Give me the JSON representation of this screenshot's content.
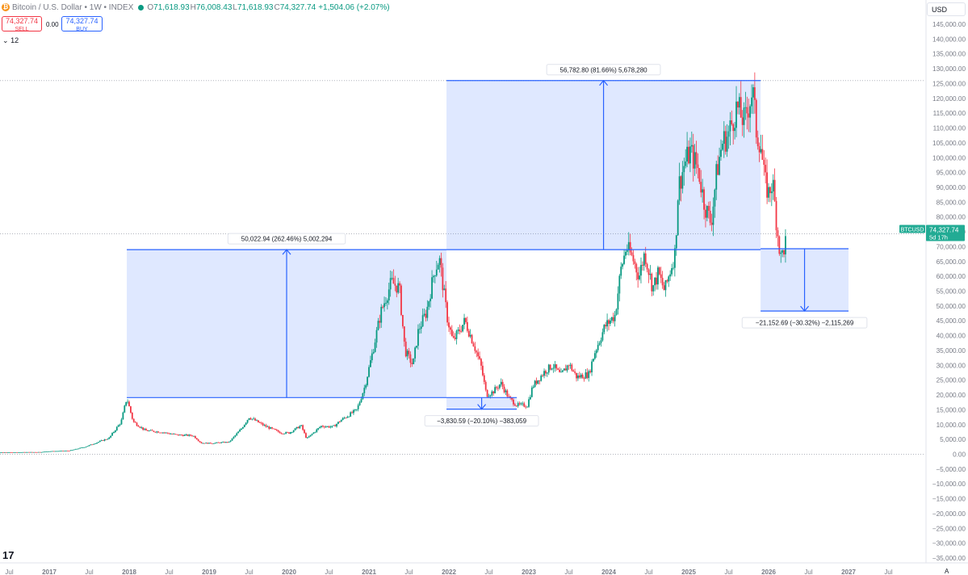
{
  "header": {
    "symbol": "Bitcoin / U.S. Dollar • 1W • INDEX",
    "coin_icon": "bitcoin-icon",
    "open_label": "O",
    "open": "71,618.93",
    "high_label": "H",
    "high": "76,008.43",
    "low_label": "L",
    "low": "71,618.93",
    "close_label": "C",
    "close": "74,327.74",
    "change": "+1,504.06 (+2.07%)"
  },
  "trade": {
    "sell_price": "74,327.74",
    "sell_label": "SELL",
    "spread": "0.00",
    "buy_price": "74,327.74",
    "buy_label": "BUY"
  },
  "interval_label": "12",
  "currency": "USD",
  "auto_label": "A",
  "logo": "tradingview-logo",
  "colors": {
    "up": "#089981",
    "down": "#f23645",
    "measure": "#2962ff",
    "measure_fill": "rgba(41,98,255,0.15)",
    "price_tag": "#22ab94"
  },
  "chart_data": {
    "type": "candlestick",
    "symbol_tag": "BTCUSD",
    "last_price": "74,327.74",
    "countdown": "5d 17h",
    "ylim": [
      -35000,
      150000
    ],
    "y_ticks": [
      "145,000.00",
      "140,000.00",
      "135,000.00",
      "130,000.00",
      "125,000.00",
      "120,000.00",
      "115,000.00",
      "110,000.00",
      "105,000.00",
      "100,000.00",
      "95,000.00",
      "90,000.00",
      "85,000.00",
      "80,000.00",
      "75,000.00",
      "70,000.00",
      "65,000.00",
      "60,000.00",
      "55,000.00",
      "50,000.00",
      "45,000.00",
      "40,000.00",
      "35,000.00",
      "30,000.00",
      "25,000.00",
      "20,000.00",
      "15,000.00",
      "10,000.00",
      "5,000.00",
      "0.00",
      "−5,000.00",
      "−10,000.00",
      "−15,000.00",
      "−20,000.00",
      "−25,000.00",
      "−30,000.00",
      "−35,000.00"
    ],
    "x_ticks": [
      {
        "label": "Jul",
        "t": 2016.5
      },
      {
        "label": "2017",
        "t": 2017.0
      },
      {
        "label": "Jul",
        "t": 2017.5
      },
      {
        "label": "2018",
        "t": 2018.0
      },
      {
        "label": "Jul",
        "t": 2018.5
      },
      {
        "label": "2019",
        "t": 2019.0
      },
      {
        "label": "Jul",
        "t": 2019.5
      },
      {
        "label": "2020",
        "t": 2020.0
      },
      {
        "label": "Jul",
        "t": 2020.5
      },
      {
        "label": "2021",
        "t": 2021.0
      },
      {
        "label": "Jul",
        "t": 2021.5
      },
      {
        "label": "2022",
        "t": 2022.0
      },
      {
        "label": "Jul",
        "t": 2022.5
      },
      {
        "label": "2023",
        "t": 2023.0
      },
      {
        "label": "Jul",
        "t": 2023.5
      },
      {
        "label": "2024",
        "t": 2024.0
      },
      {
        "label": "Jul",
        "t": 2024.5
      },
      {
        "label": "2025",
        "t": 2025.0
      },
      {
        "label": "Jul",
        "t": 2025.5
      },
      {
        "label": "2026",
        "t": 2026.0
      },
      {
        "label": "Jul",
        "t": 2026.5
      },
      {
        "label": "2027",
        "t": 2027.0
      },
      {
        "label": "Jul",
        "t": 2027.5
      }
    ],
    "price_path": [
      [
        2016.0,
        430
      ],
      [
        2016.5,
        650
      ],
      [
        2016.9,
        740
      ],
      [
        2017.0,
        1000
      ],
      [
        2017.25,
        1200
      ],
      [
        2017.45,
        2500
      ],
      [
        2017.6,
        4000
      ],
      [
        2017.75,
        5500
      ],
      [
        2017.9,
        11000
      ],
      [
        2017.97,
        19000
      ],
      [
        2018.05,
        11000
      ],
      [
        2018.2,
        8000
      ],
      [
        2018.4,
        7500
      ],
      [
        2018.6,
        6500
      ],
      [
        2018.8,
        6300
      ],
      [
        2018.9,
        3800
      ],
      [
        2019.0,
        3700
      ],
      [
        2019.25,
        4100
      ],
      [
        2019.4,
        8500
      ],
      [
        2019.5,
        12500
      ],
      [
        2019.7,
        9500
      ],
      [
        2019.9,
        7200
      ],
      [
        2020.0,
        7200
      ],
      [
        2020.15,
        9700
      ],
      [
        2020.22,
        5200
      ],
      [
        2020.4,
        9500
      ],
      [
        2020.55,
        9200
      ],
      [
        2020.65,
        11500
      ],
      [
        2020.85,
        15000
      ],
      [
        2020.95,
        23000
      ],
      [
        2021.05,
        35000
      ],
      [
        2021.15,
        48000
      ],
      [
        2021.28,
        58000
      ],
      [
        2021.38,
        56000
      ],
      [
        2021.45,
        35000
      ],
      [
        2021.55,
        30000
      ],
      [
        2021.62,
        42000
      ],
      [
        2021.72,
        48000
      ],
      [
        2021.82,
        62000
      ],
      [
        2021.88,
        66000
      ],
      [
        2021.98,
        46000
      ],
      [
        2022.05,
        38000
      ],
      [
        2022.2,
        45000
      ],
      [
        2022.3,
        38000
      ],
      [
        2022.4,
        30000
      ],
      [
        2022.47,
        20000
      ],
      [
        2022.55,
        21000
      ],
      [
        2022.65,
        24000
      ],
      [
        2022.75,
        19000
      ],
      [
        2022.85,
        16500
      ],
      [
        2022.98,
        16500
      ],
      [
        2023.05,
        23000
      ],
      [
        2023.2,
        28000
      ],
      [
        2023.3,
        30000
      ],
      [
        2023.4,
        26500
      ],
      [
        2023.5,
        30500
      ],
      [
        2023.6,
        26000
      ],
      [
        2023.75,
        27000
      ],
      [
        2023.82,
        34000
      ],
      [
        2023.95,
        43000
      ],
      [
        2024.08,
        47000
      ],
      [
        2024.15,
        62000
      ],
      [
        2024.22,
        70000
      ],
      [
        2024.3,
        66000
      ],
      [
        2024.38,
        60000
      ],
      [
        2024.45,
        68000
      ],
      [
        2024.55,
        56000
      ],
      [
        2024.62,
        61000
      ],
      [
        2024.7,
        55000
      ],
      [
        2024.78,
        63000
      ],
      [
        2024.83,
        68000
      ],
      [
        2024.87,
        90000
      ],
      [
        2024.95,
        98000
      ],
      [
        2025.02,
        102000
      ],
      [
        2025.12,
        96000
      ],
      [
        2025.2,
        84000
      ],
      [
        2025.28,
        78000
      ],
      [
        2025.35,
        95000
      ],
      [
        2025.42,
        105000
      ],
      [
        2025.5,
        108000
      ],
      [
        2025.6,
        117000
      ],
      [
        2025.7,
        112000
      ],
      [
        2025.8,
        123000
      ],
      [
        2025.85,
        108000
      ],
      [
        2025.9,
        105000
      ],
      [
        2025.95,
        92000
      ],
      [
        2026.0,
        88000
      ],
      [
        2026.05,
        92000
      ],
      [
        2026.1,
        78000
      ],
      [
        2026.15,
        66000
      ],
      [
        2026.2,
        70000
      ],
      [
        2026.23,
        74327
      ]
    ],
    "measures": [
      {
        "t0": 2017.97,
        "t1": 2021.97,
        "from": 19100,
        "to": 69000,
        "arrow": "up",
        "label": "50,022.94 (262.46%) 5,002,294"
      },
      {
        "t0": 2021.97,
        "t1": 2022.85,
        "from": 19100,
        "to": 15200,
        "arrow": "down",
        "label": "−3,830.59 (−20.10%) −383,059"
      },
      {
        "t0": 2021.97,
        "t1": 2025.9,
        "from": 69000,
        "to": 126000,
        "arrow": "up",
        "label": "56,782.80 (81.66%) 5,678,280"
      },
      {
        "t0": 2025.9,
        "t1": 2027.0,
        "from": 69300,
        "to": 48300,
        "arrow": "down",
        "label": "−21,152.69 (−30.32%) −2,115,269"
      }
    ]
  }
}
